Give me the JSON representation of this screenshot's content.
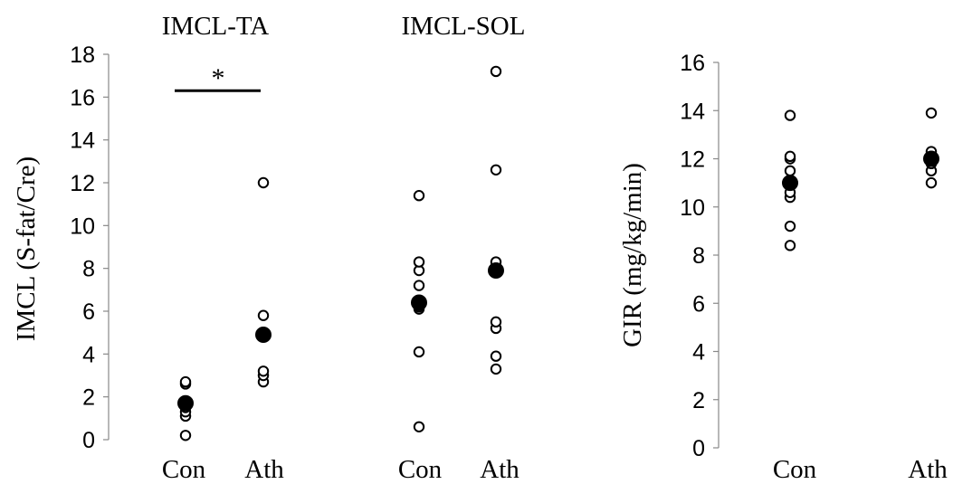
{
  "chart_data": [
    {
      "type": "scatter",
      "title": "IMCL-TA",
      "ylabel": "IMCL (S-fat/Cre)",
      "ylim": [
        0,
        18
      ],
      "yticks": [
        "0",
        "2",
        "4",
        "6",
        "8",
        "10",
        "12",
        "14",
        "16",
        "18"
      ],
      "categories": [
        "Con",
        "Ath"
      ],
      "series": [
        {
          "values": [
            [
              0.2,
              1.1,
              1.3,
              1.5,
              1.6,
              1.8,
              2.6,
              2.7
            ],
            [
              2.7,
              3.0,
              3.2,
              4.8,
              5.0,
              5.8,
              12.0
            ]
          ]
        },
        {
          "values": [
            1.7,
            4.9
          ]
        }
      ],
      "significance": {
        "label": "*",
        "y": 16.3
      }
    },
    {
      "type": "scatter",
      "title": "IMCL-SOL",
      "ylim": [
        0,
        18
      ],
      "categories": [
        "Con",
        "Ath"
      ],
      "series": [
        {
          "values": [
            [
              0.6,
              4.1,
              6.1,
              6.2,
              7.2,
              7.9,
              8.3,
              11.4
            ],
            [
              3.3,
              3.9,
              5.2,
              5.5,
              8.1,
              8.3,
              12.6,
              17.2
            ]
          ]
        },
        {
          "values": [
            6.4,
            7.9
          ]
        }
      ]
    },
    {
      "type": "scatter",
      "ylabel": "GIR (mg/kg/min)",
      "ylim": [
        0,
        16
      ],
      "yticks": [
        "0",
        "2",
        "4",
        "6",
        "8",
        "10",
        "12",
        "14",
        "16"
      ],
      "categories": [
        "Con",
        "Ath"
      ],
      "series": [
        {
          "values": [
            [
              8.4,
              9.2,
              10.4,
              10.6,
              11.0,
              11.5,
              12.0,
              12.1,
              13.8
            ],
            [
              11.0,
              11.5,
              11.8,
              12.0,
              12.2,
              12.3,
              13.9
            ]
          ]
        },
        {
          "values": [
            11.0,
            12.0
          ]
        }
      ]
    }
  ]
}
